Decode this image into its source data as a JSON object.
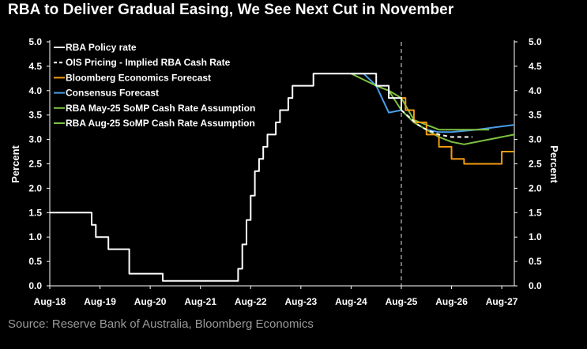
{
  "title": "RBA to Deliver Gradual Easing, We See Next Cut in November",
  "source": "Source: Reserve Bank of Australia, Bloomberg Economics",
  "chart_data": {
    "type": "line",
    "title": "RBA to Deliver Gradual Easing, We See Next Cut in November",
    "xlabel": "",
    "ylabel_left": "Percent",
    "ylabel_right": "Percent",
    "ylim": [
      0,
      5
    ],
    "yticks": [
      "0.0",
      "0.5",
      "1.0",
      "1.5",
      "2.0",
      "2.5",
      "3.0",
      "3.5",
      "4.0",
      "4.5",
      "5.0"
    ],
    "x_range": [
      "2018-08",
      "2027-11"
    ],
    "xtick_labels": [
      "Aug-18",
      "Aug-19",
      "Aug-20",
      "Aug-21",
      "Aug-22",
      "Aug-23",
      "Aug-24",
      "Aug-25",
      "Aug-26",
      "Aug-27"
    ],
    "xticks": [
      "2018-08",
      "2019-08",
      "2020-08",
      "2021-08",
      "2022-08",
      "2023-08",
      "2024-08",
      "2025-08",
      "2026-08",
      "2027-08"
    ],
    "vertical_marker": "2025-08",
    "grid": false,
    "legend_position": "top-left",
    "series": [
      {
        "name": "RBA Policy rate",
        "color": "#ffffff",
        "style": "solid",
        "step": true,
        "points": [
          [
            "2018-08",
            1.5
          ],
          [
            "2019-06",
            1.25
          ],
          [
            "2019-07",
            1.0
          ],
          [
            "2019-10",
            0.75
          ],
          [
            "2020-03",
            0.25
          ],
          [
            "2020-11",
            0.1
          ],
          [
            "2022-05",
            0.35
          ],
          [
            "2022-06",
            0.85
          ],
          [
            "2022-07",
            1.35
          ],
          [
            "2022-08",
            1.85
          ],
          [
            "2022-09",
            2.35
          ],
          [
            "2022-10",
            2.6
          ],
          [
            "2022-11",
            2.85
          ],
          [
            "2022-12",
            3.1
          ],
          [
            "2023-02",
            3.35
          ],
          [
            "2023-03",
            3.6
          ],
          [
            "2023-05",
            3.85
          ],
          [
            "2023-06",
            4.1
          ],
          [
            "2023-11",
            4.35
          ],
          [
            "2025-02",
            4.1
          ],
          [
            "2025-05",
            3.85
          ],
          [
            "2025-08",
            3.6
          ]
        ]
      },
      {
        "name": "OIS Pricing - Implied RBA Cash Rate",
        "color": "#ffffff",
        "style": "dashed",
        "points": [
          [
            "2025-08",
            3.6
          ],
          [
            "2025-10",
            3.45
          ],
          [
            "2025-12",
            3.3
          ],
          [
            "2026-02",
            3.2
          ],
          [
            "2026-05",
            3.1
          ],
          [
            "2026-08",
            3.05
          ],
          [
            "2027-01",
            3.05
          ]
        ]
      },
      {
        "name": "Bloomberg Economics Forecast",
        "color": "#f39c12",
        "style": "solid",
        "step": true,
        "points": [
          [
            "2025-08",
            3.85
          ],
          [
            "2025-09",
            3.6
          ],
          [
            "2025-11",
            3.35
          ],
          [
            "2026-02",
            3.1
          ],
          [
            "2026-05",
            2.85
          ],
          [
            "2026-08",
            2.6
          ],
          [
            "2026-11",
            2.5
          ],
          [
            "2027-08",
            2.75
          ],
          [
            "2027-11",
            2.75
          ]
        ]
      },
      {
        "name": "Consensus Forecast",
        "color": "#4a9ee8",
        "style": "solid",
        "points": [
          [
            "2024-08",
            4.35
          ],
          [
            "2024-11",
            4.35
          ],
          [
            "2025-02",
            4.1
          ],
          [
            "2025-05",
            3.55
          ],
          [
            "2025-08",
            3.6
          ],
          [
            "2025-11",
            3.35
          ],
          [
            "2026-02",
            3.2
          ],
          [
            "2026-05",
            3.15
          ],
          [
            "2026-08",
            3.15
          ],
          [
            "2027-02",
            3.2
          ],
          [
            "2027-11",
            3.3
          ]
        ]
      },
      {
        "name": "RBA May-25 SoMP Cash Rate Assumption",
        "color": "#7dc242",
        "style": "solid",
        "points": [
          [
            "2024-08",
            4.35
          ],
          [
            "2025-02",
            4.1
          ],
          [
            "2025-05",
            4.0
          ],
          [
            "2025-08",
            3.85
          ],
          [
            "2025-11",
            3.4
          ],
          [
            "2026-02",
            3.3
          ],
          [
            "2026-05",
            3.2
          ],
          [
            "2026-08",
            3.2
          ],
          [
            "2027-05",
            3.2
          ]
        ]
      },
      {
        "name": "RBA Aug-25 SoMP Cash Rate Assumption",
        "color": "#7dc242",
        "style": "solid",
        "points": [
          [
            "2025-05",
            4.0
          ],
          [
            "2025-08",
            3.6
          ],
          [
            "2025-11",
            3.35
          ],
          [
            "2026-02",
            3.2
          ],
          [
            "2026-05",
            3.05
          ],
          [
            "2026-08",
            2.95
          ],
          [
            "2026-11",
            2.9
          ],
          [
            "2027-11",
            3.1
          ]
        ]
      }
    ]
  }
}
